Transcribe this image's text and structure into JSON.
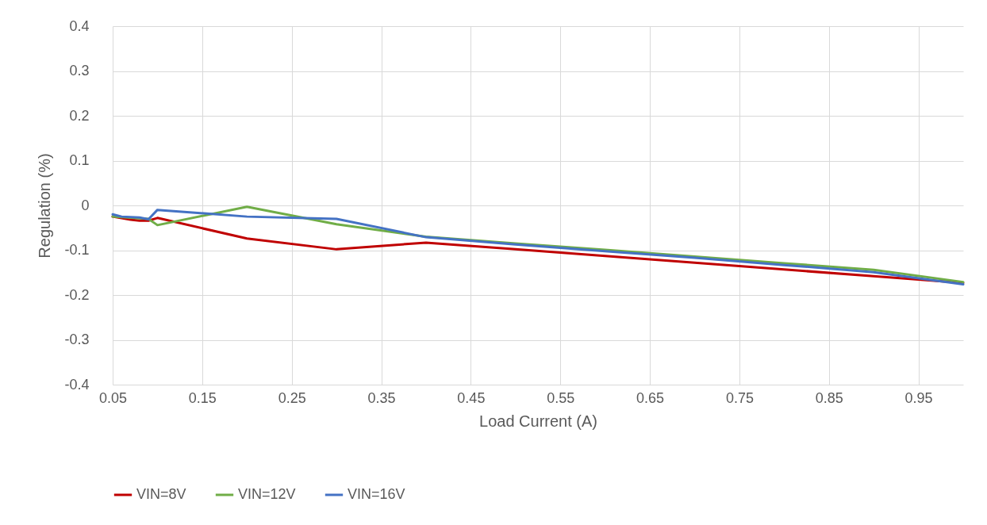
{
  "chart_data": {
    "type": "line",
    "xlabel": "Load Current (A)",
    "ylabel": "Regulation (%)",
    "xlim": [
      0.05,
      1.0
    ],
    "xticks": [
      0.05,
      0.15,
      0.25,
      0.35,
      0.45,
      0.55,
      0.65,
      0.75,
      0.85,
      0.95
    ],
    "ylim": [
      -0.4,
      0.4
    ],
    "yticks": [
      -0.4,
      -0.3,
      -0.2,
      -0.1,
      0,
      0.1,
      0.2,
      0.3,
      0.4
    ],
    "grid": true,
    "legend": "bottom",
    "marker": "none",
    "line_style": "solid",
    "series": [
      {
        "name": "VIN=8V",
        "color": "#c00000",
        "x": [
          0.05,
          0.07,
          0.08,
          0.09,
          0.1,
          0.2,
          0.3,
          0.4,
          0.5,
          0.6,
          0.7,
          0.8,
          0.9,
          1.0
        ],
        "values": [
          -0.025,
          -0.032,
          -0.034,
          -0.034,
          -0.028,
          -0.074,
          -0.098,
          -0.083,
          -0.098,
          -0.113,
          -0.128,
          -0.143,
          -0.158,
          -0.173
        ]
      },
      {
        "name": "VIN=12V",
        "color": "#70ad47",
        "x": [
          0.05,
          0.09,
          0.1,
          0.2,
          0.3,
          0.4,
          0.5,
          0.6,
          0.7,
          0.8,
          0.9,
          1.0
        ],
        "values": [
          -0.025,
          -0.03,
          -0.044,
          -0.003,
          -0.042,
          -0.07,
          -0.085,
          -0.099,
          -0.114,
          -0.129,
          -0.144,
          -0.171
        ]
      },
      {
        "name": "VIN=16V",
        "color": "#4472c4",
        "x": [
          0.05,
          0.06,
          0.08,
          0.09,
          0.1,
          0.2,
          0.3,
          0.4,
          0.5,
          0.6,
          0.7,
          0.8,
          0.9,
          1.0
        ],
        "values": [
          -0.02,
          -0.025,
          -0.027,
          -0.031,
          -0.01,
          -0.025,
          -0.03,
          -0.071,
          -0.087,
          -0.102,
          -0.117,
          -0.133,
          -0.149,
          -0.176
        ]
      }
    ]
  }
}
